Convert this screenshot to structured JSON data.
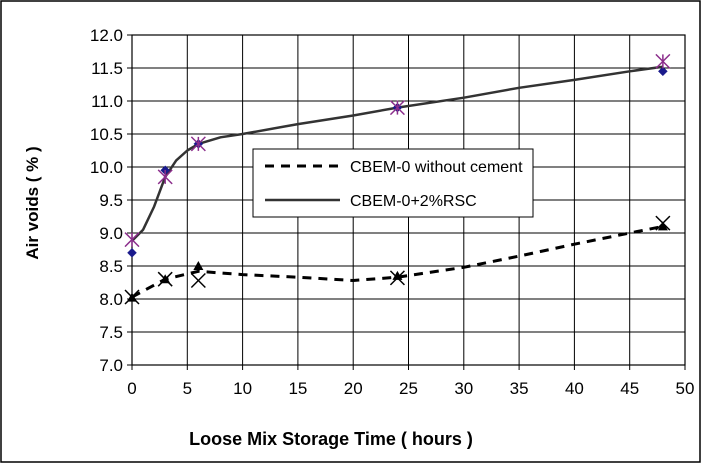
{
  "chart_data": {
    "type": "line",
    "title": "",
    "xlabel": "Loose Mix Storage Time ( hours )",
    "ylabel": "Air voids ( % )",
    "xlim": [
      0,
      50
    ],
    "ylim": [
      7.0,
      12.0
    ],
    "x_ticks": [
      "0",
      "5",
      "10",
      "15",
      "20",
      "25",
      "30",
      "35",
      "40",
      "45",
      "50"
    ],
    "y_ticks": [
      "7.0",
      "7.5",
      "8.0",
      "8.5",
      "9.0",
      "9.5",
      "10.0",
      "10.5",
      "11.0",
      "11.5",
      "12.0"
    ],
    "grid": true,
    "legend_position": "center-right",
    "series": [
      {
        "name": "CBEM-0 without cement",
        "line_style": "dashed",
        "color": "#000000",
        "fit_curve": [
          [
            0,
            8.03
          ],
          [
            3,
            8.3
          ],
          [
            6,
            8.42
          ],
          [
            10,
            8.37
          ],
          [
            15,
            8.33
          ],
          [
            20,
            8.28
          ],
          [
            24,
            8.33
          ],
          [
            30,
            8.48
          ],
          [
            35,
            8.65
          ],
          [
            40,
            8.83
          ],
          [
            45,
            9.0
          ],
          [
            48,
            9.1
          ]
        ],
        "points_triangle": [
          [
            0,
            8.02
          ],
          [
            3,
            8.3
          ],
          [
            6,
            8.5
          ],
          [
            24,
            8.35
          ],
          [
            48,
            9.1
          ]
        ],
        "points_x": [
          [
            0,
            8.03
          ],
          [
            3,
            8.3
          ],
          [
            6,
            8.28
          ],
          [
            24,
            8.32
          ],
          [
            48,
            9.15
          ]
        ]
      },
      {
        "name": "CBEM-0+2%RSC",
        "line_style": "solid",
        "color": "#333333",
        "fit_curve": [
          [
            0,
            8.88
          ],
          [
            1,
            9.05
          ],
          [
            2,
            9.4
          ],
          [
            3,
            9.85
          ],
          [
            4,
            10.1
          ],
          [
            5,
            10.25
          ],
          [
            6,
            10.35
          ],
          [
            8,
            10.45
          ],
          [
            10,
            10.5
          ],
          [
            15,
            10.65
          ],
          [
            20,
            10.78
          ],
          [
            24,
            10.9
          ],
          [
            30,
            11.05
          ],
          [
            35,
            11.2
          ],
          [
            40,
            11.32
          ],
          [
            45,
            11.45
          ],
          [
            48,
            11.52
          ]
        ],
        "points_diamond": [
          [
            0,
            8.7
          ],
          [
            3,
            9.95
          ],
          [
            6,
            10.35
          ],
          [
            24,
            10.9
          ],
          [
            48,
            11.45
          ]
        ],
        "points_star": [
          [
            0,
            8.9
          ],
          [
            3,
            9.85
          ],
          [
            6,
            10.35
          ],
          [
            24,
            10.9
          ],
          [
            48,
            11.6
          ]
        ]
      }
    ]
  }
}
